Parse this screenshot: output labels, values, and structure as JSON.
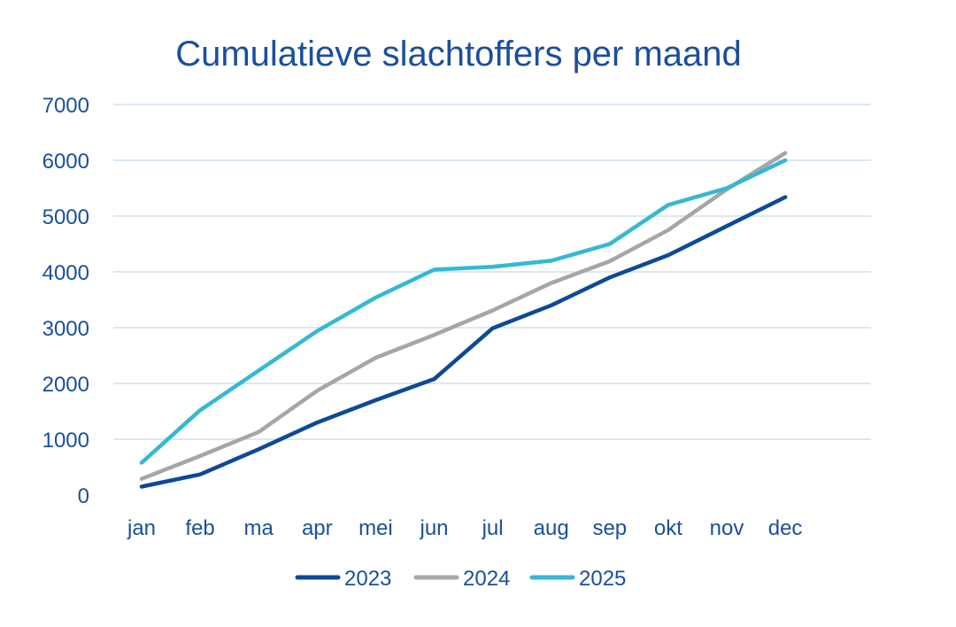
{
  "chart_data": {
    "type": "line",
    "title": "Cumulatieve slachtoffers per maand",
    "xlabel": "",
    "ylabel": "",
    "categories": [
      "jan",
      "feb",
      "ma",
      "apr",
      "mei",
      "jun",
      "jul",
      "aug",
      "sep",
      "okt",
      "nov",
      "dec"
    ],
    "ylim": [
      0,
      7000
    ],
    "yticks": [
      0,
      1000,
      2000,
      3000,
      4000,
      5000,
      6000,
      7000
    ],
    "grid": true,
    "legend_position": "bottom",
    "series": [
      {
        "name": "2023",
        "color": "#0d4a96",
        "values": [
          150,
          370,
          820,
          1300,
          1700,
          2080,
          2990,
          3400,
          3900,
          4300,
          4820,
          5340
        ]
      },
      {
        "name": "2024",
        "color": "#a6a6a6",
        "values": [
          290,
          700,
          1130,
          1870,
          2460,
          2870,
          3310,
          3800,
          4190,
          4750,
          5480,
          6130
        ]
      },
      {
        "name": "2025",
        "color": "#35b8d3",
        "values": [
          580,
          1520,
          2230,
          2940,
          3540,
          4040,
          4090,
          4200,
          4500,
          5200,
          5500,
          6000
        ]
      }
    ]
  }
}
